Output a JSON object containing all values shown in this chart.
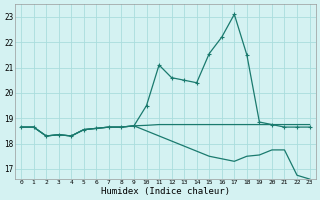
{
  "xlabel": "Humidex (Indice chaleur)",
  "background_color": "#d4f2f2",
  "grid_color": "#aadddd",
  "line_color": "#1a7a6e",
  "xlim": [
    -0.5,
    23.5
  ],
  "ylim": [
    16.6,
    23.5
  ],
  "yticks": [
    17,
    18,
    19,
    20,
    21,
    22,
    23
  ],
  "xticks": [
    0,
    1,
    2,
    3,
    4,
    5,
    6,
    7,
    8,
    9,
    10,
    11,
    12,
    13,
    14,
    15,
    16,
    17,
    18,
    19,
    20,
    21,
    22,
    23
  ],
  "line1_x": [
    0,
    1,
    2,
    3,
    4,
    5,
    6,
    7,
    8,
    9,
    10,
    11,
    12,
    13,
    14,
    15,
    16,
    17,
    18,
    19,
    20,
    21,
    22,
    23
  ],
  "line1_y": [
    18.65,
    18.65,
    18.3,
    18.35,
    18.3,
    18.55,
    18.6,
    18.65,
    18.65,
    18.7,
    19.5,
    21.1,
    20.6,
    20.5,
    20.4,
    21.55,
    22.2,
    23.1,
    21.5,
    18.85,
    18.75,
    18.65,
    18.65,
    18.65
  ],
  "line2_x": [
    0,
    1,
    2,
    3,
    4,
    5,
    6,
    7,
    8,
    9,
    10,
    11,
    12,
    13,
    14,
    15,
    16,
    17,
    18,
    19,
    20,
    21,
    22,
    23
  ],
  "line2_y": [
    18.65,
    18.65,
    18.3,
    18.35,
    18.3,
    18.55,
    18.6,
    18.65,
    18.65,
    18.7,
    18.72,
    18.75,
    18.75,
    18.75,
    18.75,
    18.75,
    18.75,
    18.75,
    18.75,
    18.75,
    18.75,
    18.75,
    18.75,
    18.75
  ],
  "line3_x": [
    0,
    1,
    2,
    3,
    4,
    5,
    6,
    7,
    8,
    9,
    10,
    11,
    12,
    13,
    14,
    15,
    16,
    17,
    18,
    19,
    20,
    21,
    22,
    23
  ],
  "line3_y": [
    18.65,
    18.65,
    18.3,
    18.35,
    18.3,
    18.55,
    18.6,
    18.65,
    18.65,
    18.7,
    18.5,
    18.3,
    18.1,
    17.9,
    17.7,
    17.5,
    17.4,
    17.3,
    17.5,
    17.55,
    17.75,
    17.75,
    16.75,
    16.6
  ]
}
